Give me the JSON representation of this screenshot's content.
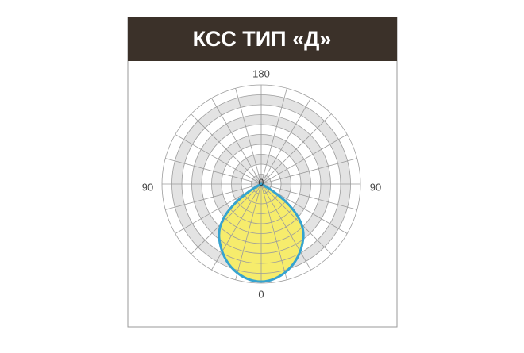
{
  "header": {
    "title": "КСС ТИП «Д»"
  },
  "diagram": {
    "labels": {
      "top": "180",
      "left": "90",
      "right": "90",
      "center": "0",
      "bottom": "0"
    }
  }
}
